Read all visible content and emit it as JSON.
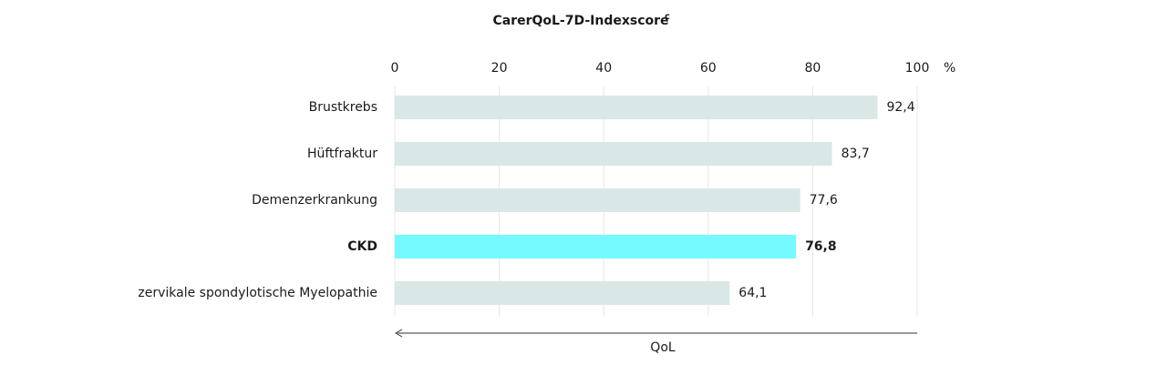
{
  "chart_data": {
    "type": "bar",
    "orientation": "horizontal",
    "title": "CarerQoL-7D-Indexscore",
    "title_superscript": "c",
    "unit": "%",
    "axis_arrow_label": "QoL",
    "categories": [
      "Brustkrebs",
      "Hüftfraktur",
      "Demenzerkrankung",
      "CKD",
      "zervikale spondylotische Myelopathie"
    ],
    "values": [
      92.4,
      83.7,
      77.6,
      76.8,
      64.1
    ],
    "value_labels": [
      "92,4",
      "83,7",
      "77,6",
      "76,8",
      "64,1"
    ],
    "color": "#d9e8e6",
    "highlight_color": "#74f9fe",
    "highlight": [
      false,
      false,
      false,
      true,
      false
    ],
    "xlim": [
      0,
      100
    ],
    "xticks": [
      0,
      20,
      40,
      60,
      80,
      100
    ],
    "grid": true
  }
}
